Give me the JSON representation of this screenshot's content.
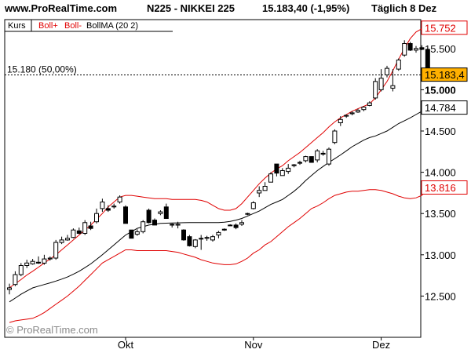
{
  "header": {
    "site": "www.ProRealTime.com",
    "instrument": "N225 - NIKKEI 225",
    "quote": "15.183,40 (-1,95%)",
    "period": "Täglich  8 Dez"
  },
  "chart_data": {
    "type": "candlestick",
    "legend": {
      "kurs": "Kurs",
      "boll_plus": "Boll+",
      "boll_minus": "Boll-",
      "bollma": "BollMA (20 2)"
    },
    "x_labels": [
      {
        "label": "Okt",
        "index": 20
      },
      {
        "label": "Nov",
        "index": 42
      },
      {
        "label": "Dez",
        "index": 64
      }
    ],
    "y_ticks": [
      12500,
      13000,
      13500,
      14000,
      14500,
      15000,
      15500
    ],
    "y_tick_labels": [
      "12.500",
      "13.000",
      "13.500",
      "14.000",
      "14.500",
      "15.000",
      "15.500"
    ],
    "ylim": [
      12000,
      15850
    ],
    "value_boxes": [
      {
        "label": "15.752",
        "value": 15752,
        "color": "#e00000",
        "kind": "boll_plus"
      },
      {
        "label": "15.183,4",
        "value": 15183.4,
        "color": "#000000",
        "kind": "last"
      },
      {
        "label": "14.784",
        "value": 14784,
        "color": "#000000",
        "kind": "ma"
      },
      {
        "label": "13.816",
        "value": 13816,
        "color": "#e00000",
        "kind": "boll_minus"
      }
    ],
    "retracement": {
      "label": "15.180 (50,00%)",
      "value": 15180
    },
    "watermark": "© ProRealTime.com",
    "colors": {
      "boll": "#e00000",
      "ma": "#000000",
      "last_box": "#ffb000",
      "up_fill": "#ffffff",
      "down_fill": "#000000"
    },
    "candles": [
      [
        12580,
        12650,
        12520,
        12600
      ],
      [
        12640,
        12800,
        12620,
        12760
      ],
      [
        12760,
        12900,
        12740,
        12870
      ],
      [
        12870,
        12940,
        12840,
        12900
      ],
      [
        12890,
        12950,
        12880,
        12920
      ],
      [
        12910,
        12980,
        12890,
        12900
      ],
      [
        12900,
        13000,
        12880,
        12950
      ],
      [
        12950,
        12980,
        12930,
        12960
      ],
      [
        12960,
        13180,
        12940,
        13150
      ],
      [
        13150,
        13220,
        13130,
        13180
      ],
      [
        13180,
        13240,
        13170,
        13200
      ],
      [
        13210,
        13320,
        13200,
        13300
      ],
      [
        13290,
        13330,
        13250,
        13260
      ],
      [
        13260,
        13420,
        13240,
        13390
      ],
      [
        13350,
        13400,
        13300,
        13320
      ],
      [
        13400,
        13560,
        13380,
        13500
      ],
      [
        13560,
        13680,
        13520,
        13640
      ],
      [
        13560,
        13600,
        13520,
        13540
      ],
      [
        13580,
        13620,
        13560,
        13590
      ],
      [
        13640,
        13720,
        13620,
        13700
      ],
      [
        13580,
        13600,
        13380,
        13380
      ],
      [
        13300,
        13300,
        13200,
        13200
      ],
      [
        13250,
        13310,
        13230,
        13280
      ],
      [
        13280,
        13420,
        13260,
        13400
      ],
      [
        13540,
        13560,
        13380,
        13390
      ],
      [
        13420,
        13440,
        13360,
        13360
      ],
      [
        13500,
        13540,
        13480,
        13520
      ],
      [
        13580,
        13620,
        13440,
        13440
      ],
      [
        13370,
        13380,
        13330,
        13360
      ],
      [
        13360,
        13400,
        13320,
        13370
      ],
      [
        13300,
        13310,
        13170,
        13180
      ],
      [
        13220,
        13240,
        13100,
        13110
      ],
      [
        13100,
        13190,
        13080,
        13180
      ],
      [
        13200,
        13240,
        13060,
        13200
      ],
      [
        13200,
        13230,
        13170,
        13210
      ],
      [
        13180,
        13240,
        13160,
        13220
      ],
      [
        13240,
        13290,
        13200,
        13270
      ],
      [
        13310,
        13320,
        13290,
        13300
      ],
      [
        13360,
        13370,
        13350,
        13360
      ],
      [
        13360,
        13380,
        13310,
        13330
      ],
      [
        13370,
        13420,
        13350,
        13390
      ],
      [
        13500,
        13510,
        13480,
        13500
      ],
      [
        13560,
        13650,
        13550,
        13630
      ],
      [
        13750,
        13830,
        13700,
        13780
      ],
      [
        13780,
        13880,
        13780,
        13830
      ],
      [
        13880,
        14000,
        13880,
        13980
      ],
      [
        14100,
        14100,
        13950,
        13990
      ],
      [
        13960,
        14050,
        13960,
        14020
      ],
      [
        14010,
        14100,
        13980,
        14050
      ],
      [
        14080,
        14100,
        14060,
        14090
      ],
      [
        14120,
        14140,
        14090,
        14110
      ],
      [
        14140,
        14200,
        14120,
        14190
      ],
      [
        14190,
        14190,
        14120,
        14120
      ],
      [
        14150,
        14280,
        14120,
        14260
      ],
      [
        14230,
        14260,
        14200,
        14220
      ],
      [
        14100,
        14300,
        14080,
        14280
      ],
      [
        14360,
        14520,
        14340,
        14500
      ],
      [
        14600,
        14680,
        14560,
        14640
      ],
      [
        14680,
        14700,
        14660,
        14690
      ],
      [
        14710,
        14740,
        14690,
        14720
      ],
      [
        14730,
        14770,
        14720,
        14750
      ],
      [
        14760,
        14800,
        14740,
        14790
      ],
      [
        14810,
        14860,
        14800,
        14840
      ],
      [
        14900,
        15140,
        14880,
        15100
      ],
      [
        15000,
        15250,
        14980,
        15140
      ],
      [
        15180,
        15290,
        15150,
        15260
      ],
      [
        15020,
        15250,
        14980,
        15050
      ],
      [
        15250,
        15380,
        15230,
        15360
      ],
      [
        15420,
        15600,
        15400,
        15560
      ],
      [
        15560,
        15580,
        15470,
        15480
      ],
      [
        15480,
        15530,
        15450,
        15500
      ],
      [
        15510,
        15540,
        15480,
        15490
      ],
      [
        15490,
        15500,
        15150,
        15183.4
      ]
    ],
    "bollma": [
      12430,
      12475,
      12522,
      12562,
      12599,
      12620,
      12640,
      12660,
      12682,
      12705,
      12731,
      12764,
      12800,
      12844,
      12890,
      12945,
      13000,
      13060,
      13120,
      13180,
      13240,
      13280,
      13320,
      13340,
      13360,
      13370,
      13380,
      13383,
      13385,
      13387,
      13389,
      13390,
      13390,
      13390,
      13390,
      13390,
      13390,
      13395,
      13405,
      13420,
      13440,
      13470,
      13500,
      13530,
      13570,
      13610,
      13640,
      13670,
      13720,
      13770,
      13830,
      13900,
      13960,
      14020,
      14070,
      14120,
      14165,
      14210,
      14260,
      14310,
      14350,
      14390,
      14420,
      14440,
      14470,
      14500,
      14545,
      14590,
      14625,
      14660,
      14700,
      14740,
      14784
    ],
    "boll_plus": [
      12600,
      12650,
      12700,
      12755,
      12800,
      12850,
      12900,
      12950,
      13000,
      13060,
      13120,
      13180,
      13240,
      13300,
      13360,
      13430,
      13500,
      13580,
      13640,
      13700,
      13720,
      13720,
      13710,
      13700,
      13690,
      13680,
      13680,
      13680,
      13670,
      13670,
      13670,
      13670,
      13670,
      13660,
      13640,
      13600,
      13560,
      13540,
      13540,
      13560,
      13620,
      13700,
      13780,
      13860,
      13930,
      13990,
      14040,
      14080,
      14140,
      14190,
      14240,
      14300,
      14360,
      14420,
      14480,
      14550,
      14610,
      14660,
      14700,
      14740,
      14770,
      14800,
      14830,
      14900,
      15000,
      15100,
      15230,
      15370,
      15500,
      15620,
      15700,
      15740,
      15752
    ],
    "boll_minus": [
      12180,
      12200,
      12210,
      12220,
      12230,
      12260,
      12300,
      12350,
      12400,
      12450,
      12500,
      12560,
      12620,
      12690,
      12760,
      12830,
      12900,
      12940,
      12980,
      13020,
      13060,
      13060,
      13050,
      13050,
      13050,
      13050,
      13050,
      13050,
      13040,
      13030,
      13010,
      12990,
      12970,
      12940,
      12920,
      12900,
      12890,
      12880,
      12880,
      12890,
      12920,
      12960,
      13020,
      13060,
      13120,
      13160,
      13220,
      13280,
      13340,
      13390,
      13440,
      13500,
      13560,
      13590,
      13630,
      13680,
      13720,
      13740,
      13760,
      13770,
      13770,
      13780,
      13790,
      13790,
      13780,
      13760,
      13740,
      13710,
      13690,
      13680,
      13690,
      13720,
      13816
    ]
  }
}
